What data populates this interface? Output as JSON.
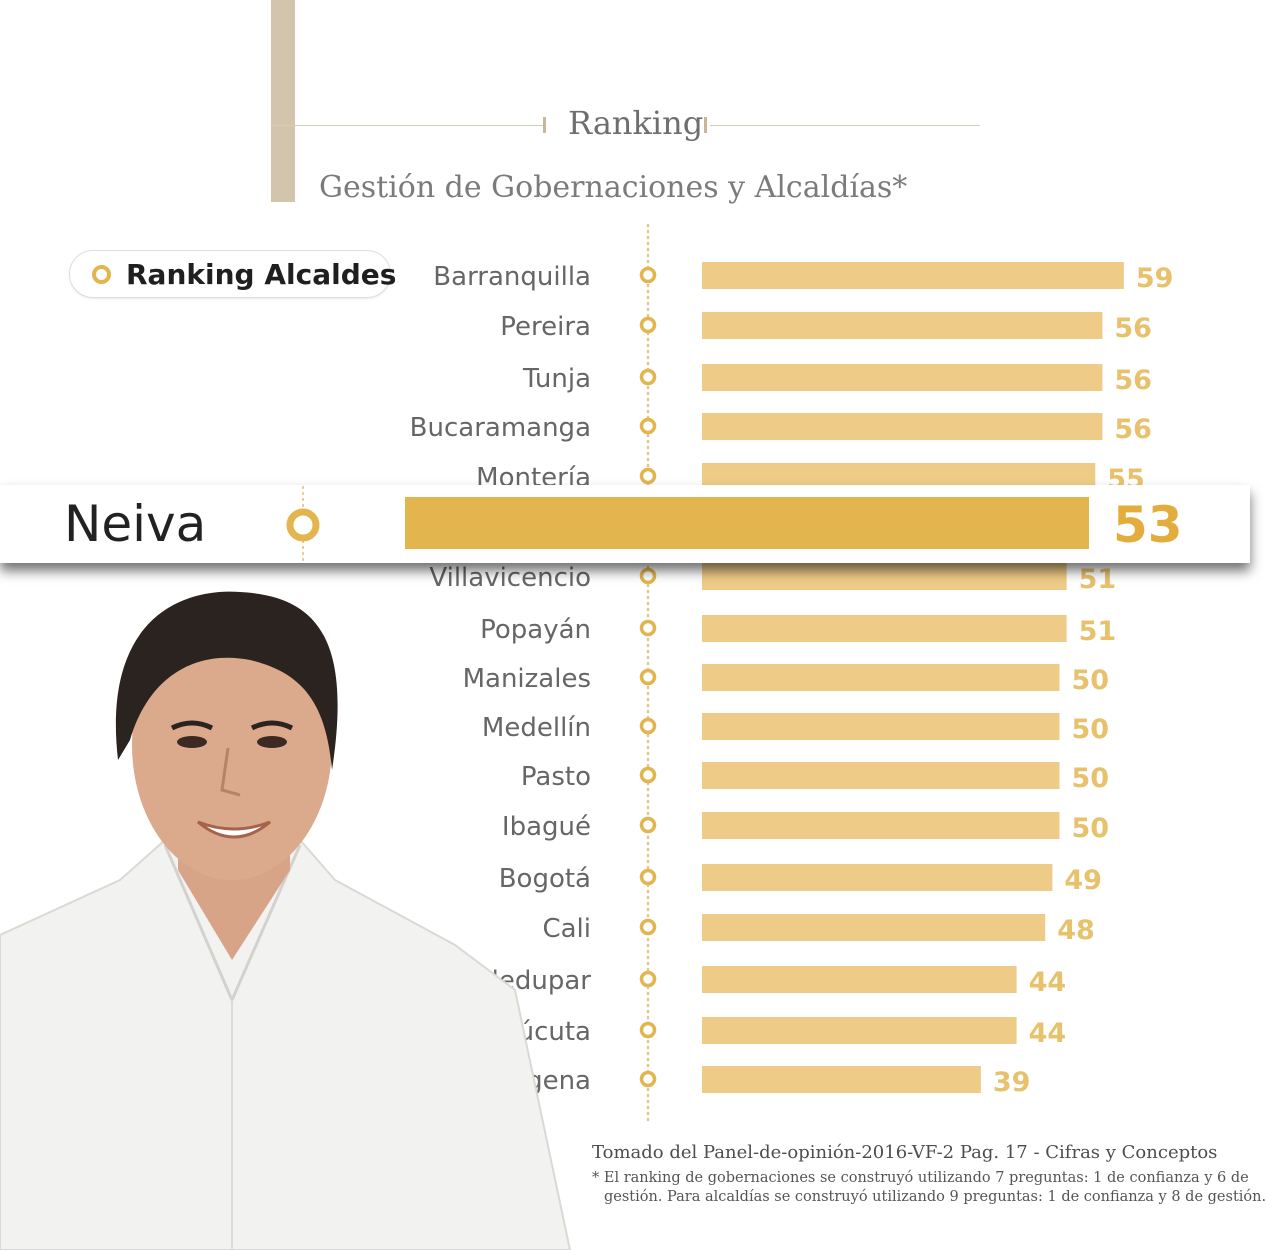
{
  "header": {
    "title": "Ranking",
    "subtitle": "Gestión de Gobernaciones y Alcaldías*"
  },
  "legend": {
    "label": "Ranking Alcaldes"
  },
  "colors": {
    "bar": "#eecb86",
    "highlight_bar": "#e2b54f",
    "value_text": "#e8c16c",
    "highlight_value": "#e2ad3c",
    "city_text": "#666666",
    "dot_line": "#e6c68a"
  },
  "chart_data": {
    "type": "bar",
    "orientation": "horizontal",
    "categories": [
      "Barranquilla",
      "Pereira",
      "Tunja",
      "Bucaramanga",
      "Montería",
      "Neiva",
      "Villavicencio",
      "Popayán",
      "Manizales",
      "Medellín",
      "Pasto",
      "Ibagué",
      "Bogotá",
      "Cali",
      "Valledupar",
      "Cúcuta",
      "Cartagena"
    ],
    "values": [
      59,
      56,
      56,
      56,
      55,
      53,
      51,
      51,
      50,
      50,
      50,
      50,
      49,
      48,
      44,
      44,
      39
    ],
    "highlight": "Neiva",
    "xlim": [
      0,
      60
    ]
  },
  "footer": {
    "source": "Tomado del Panel-de-opinión-2016-VF-2 Pag. 17 - Cifras y Conceptos",
    "note_line1": "* El ranking de gobernaciones se construyó utilizando 7 preguntas: 1 de confianza y 6 de",
    "note_line2": "gestión. Para alcaldías se construyó utilizando 9 preguntas: 1 de confianza y 8 de gestión."
  },
  "photo": {
    "subject": "smiling man in white shirt"
  }
}
